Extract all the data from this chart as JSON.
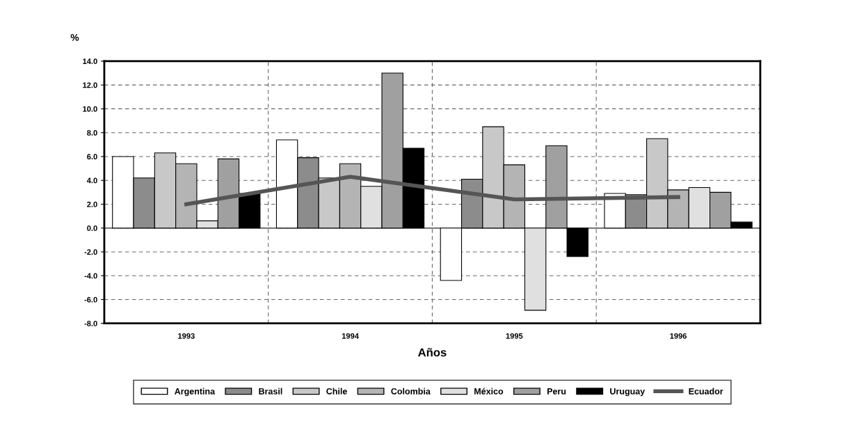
{
  "chart_data": {
    "type": "bar",
    "xlabel": "Años",
    "ylabel": "%",
    "categories": [
      "1993",
      "1994",
      "1995",
      "1996"
    ],
    "series": [
      {
        "name": "Argentina",
        "color": "#ffffff",
        "values": [
          6.0,
          7.4,
          -4.4,
          2.9
        ]
      },
      {
        "name": "Brasil",
        "color": "#8c8c8c",
        "values": [
          4.2,
          5.9,
          4.1,
          2.8
        ]
      },
      {
        "name": "Chile",
        "color": "#c8c8c8",
        "values": [
          6.3,
          4.2,
          8.5,
          7.5
        ]
      },
      {
        "name": "Colombia",
        "color": "#b4b4b4",
        "values": [
          5.4,
          5.4,
          5.3,
          3.2
        ]
      },
      {
        "name": "México",
        "color": "#e0e0e0",
        "values": [
          0.6,
          3.5,
          -6.9,
          3.4
        ]
      },
      {
        "name": "Peru",
        "color": "#a0a0a0",
        "values": [
          5.8,
          13.0,
          6.9,
          3.0
        ]
      },
      {
        "name": "Uruguay",
        "color": "#000000",
        "values": [
          2.9,
          6.7,
          -2.4,
          0.5
        ]
      },
      {
        "name": "Ecuador",
        "type": "line",
        "color": "#555555",
        "values": [
          2.0,
          4.3,
          2.4,
          2.6
        ]
      }
    ],
    "ylim": [
      -8,
      14
    ],
    "yticks": [
      {
        "value": -8,
        "label": "-8.0"
      },
      {
        "value": -6,
        "label": "-6.0"
      },
      {
        "value": -4,
        "label": "-4.0"
      },
      {
        "value": -2,
        "label": "-2.0"
      },
      {
        "value": 0,
        "label": "0.0"
      },
      {
        "value": 2,
        "label": "2.0"
      },
      {
        "value": 4,
        "label": "4.0"
      },
      {
        "value": 6,
        "label": "6.0"
      },
      {
        "value": 8,
        "label": "8.0"
      },
      {
        "value": 10,
        "label": "10.0"
      },
      {
        "value": 12,
        "label": "12.0"
      },
      {
        "value": 14,
        "label": "14.0"
      }
    ],
    "grid": true,
    "legend": "bottom"
  }
}
